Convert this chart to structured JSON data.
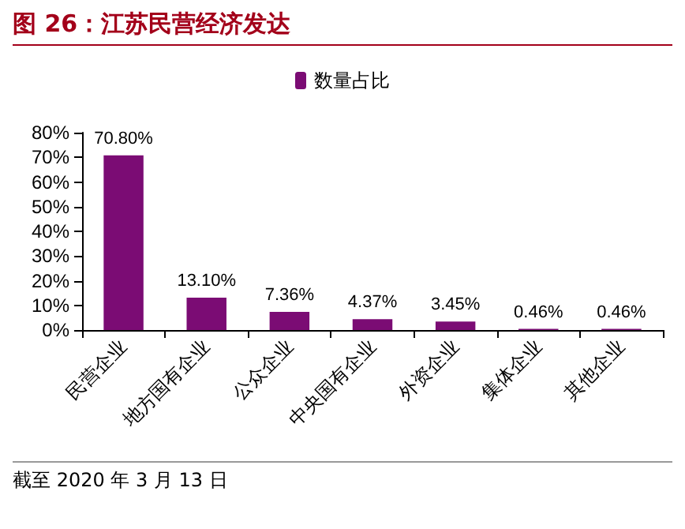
{
  "chart_data": {
    "type": "bar",
    "title": "图 26：江苏民营经济发达",
    "categories": [
      "民营企业",
      "地方国有企业",
      "公众企业",
      "中央国有企业",
      "外资企业",
      "集体企业",
      "其他企业"
    ],
    "series": [
      {
        "name": "数量占比",
        "color": "#7b0c74",
        "values": [
          70.8,
          13.1,
          7.36,
          4.37,
          3.45,
          0.46,
          0.46
        ],
        "value_labels": [
          "70.80%",
          "13.10%",
          "7.36%",
          "4.37%",
          "3.45%",
          "0.46%",
          "0.46%"
        ]
      }
    ],
    "ylim": [
      0,
      80
    ],
    "yticks": [
      {
        "value": 0,
        "label": "0%"
      },
      {
        "value": 10,
        "label": "10%"
      },
      {
        "value": 20,
        "label": "20%"
      },
      {
        "value": 30,
        "label": "30%"
      },
      {
        "value": 40,
        "label": "40%"
      },
      {
        "value": 50,
        "label": "50%"
      },
      {
        "value": 60,
        "label": "60%"
      },
      {
        "value": 70,
        "label": "70%"
      },
      {
        "value": 80,
        "label": "80%"
      }
    ],
    "grid": false,
    "legend": "top",
    "annotations": [
      "截至 2020 年 3 月 13 日"
    ]
  }
}
